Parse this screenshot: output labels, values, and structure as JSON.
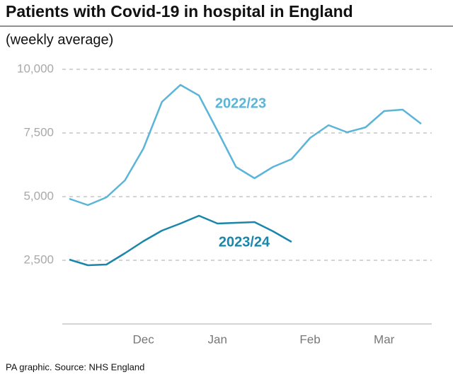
{
  "chart_data": {
    "type": "line",
    "title": "Patients with Covid-19 in hospital in England",
    "subtitle": "(weekly average)",
    "source": "PA graphic. Source: NHS England",
    "categories": [
      null,
      null,
      null,
      null,
      "Dec",
      null,
      null,
      null,
      "Jan",
      null,
      null,
      null,
      null,
      "Feb",
      null,
      null,
      null,
      "Mar",
      null,
      null
    ],
    "series": [
      {
        "name": "2022/23",
        "color": "#5bb5d8",
        "values": [
          4917,
          4667,
          4972,
          5639,
          6889,
          8722,
          9389,
          8972,
          7583,
          6167,
          5722,
          6167,
          6472,
          7306,
          7806,
          7528,
          7722,
          8361,
          8417,
          7861
        ]
      },
      {
        "name": "2023/24",
        "color": "#1a86aa",
        "values": [
          2528,
          2306,
          2333,
          2778,
          3250,
          3667,
          3944,
          4250,
          3944,
          3972,
          4000,
          3639,
          3222,
          null,
          null,
          null,
          null,
          null,
          null,
          null
        ]
      }
    ],
    "ylim": [
      0,
      10000
    ],
    "yticks": [
      {
        "value": 2500,
        "label": "2,500"
      },
      {
        "value": 5000,
        "label": "5,000"
      },
      {
        "value": 7500,
        "label": "7,500"
      },
      {
        "value": 10000,
        "label": "10,000"
      }
    ],
    "grid": true
  }
}
